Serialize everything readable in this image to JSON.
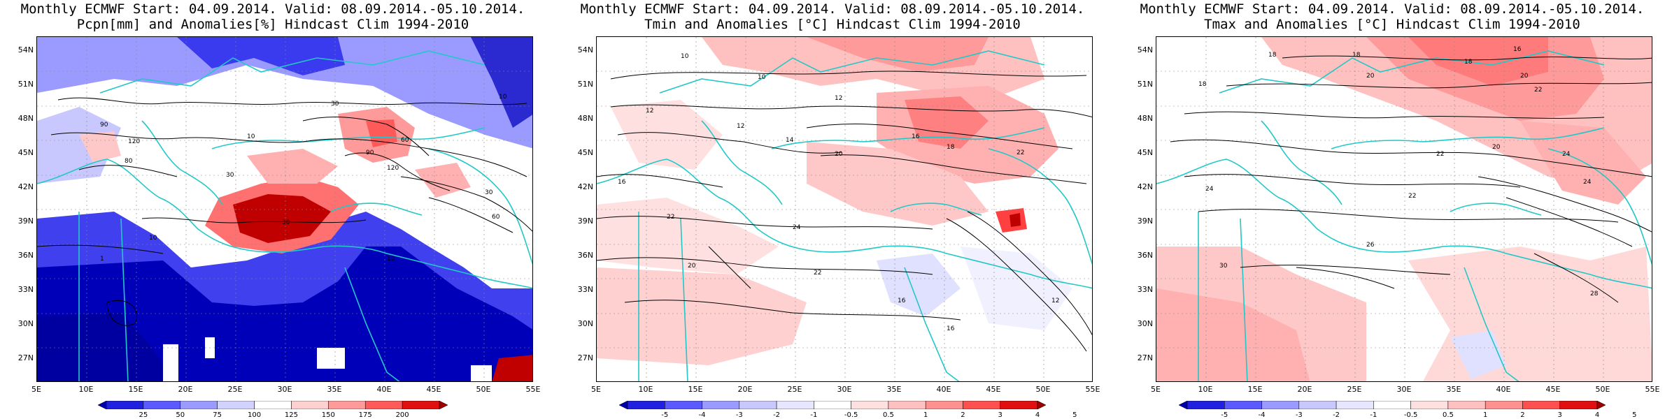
{
  "panels": [
    {
      "title1": "Monthly ECMWF Start: 04.09.2014. Valid: 08.09.2014.-05.10.2014.",
      "title2": "Pcpn[mm] and Anomalies[%] Hindcast Clim 1994-2010",
      "colorbar_labels": [
        "25",
        "50",
        "75",
        "100",
        "125",
        "150",
        "175",
        "200"
      ],
      "colorbar_colors": [
        "#0000b0",
        "#2020e0",
        "#5a5aff",
        "#9a9aff",
        "#d2d2ff",
        "#ffffff",
        "#ffd0d0",
        "#ff9a9a",
        "#ff5a5a",
        "#e01010",
        "#a00000"
      ],
      "contour_labels": [
        "30",
        "10",
        "60",
        "90",
        "120",
        "80",
        "60",
        "30",
        "10",
        "1",
        "30",
        "60",
        "90",
        "120"
      ]
    },
    {
      "title1": "Monthly ECMWF Start: 04.09.2014. Valid: 08.09.2014.-05.10.2014.",
      "title2": "Tmin and Anomalies [°C] Hindcast Clim 1994-2010",
      "colorbar_labels": [
        "-5",
        "-4",
        "-3",
        "-2",
        "-1",
        "-0.5",
        "0.5",
        "1",
        "2",
        "3",
        "4",
        "5"
      ],
      "colorbar_colors": [
        "#0000b0",
        "#2020e0",
        "#5a5aff",
        "#9a9aff",
        "#c8c8ff",
        "#e6e6ff",
        "#ffffff",
        "#ffe0e0",
        "#ffc0c0",
        "#ff9090",
        "#ff5050",
        "#e01010",
        "#a00000"
      ],
      "contour_labels": [
        "10",
        "12",
        "14",
        "16",
        "18",
        "20",
        "22",
        "24",
        "10",
        "12",
        "20",
        "16"
      ]
    },
    {
      "title1": "Monthly ECMWF Start: 04.09.2014. Valid: 08.09.2014.-05.10.2014.",
      "title2": "Tmax and Anomalies [°C] Hindcast Clim 1994-2010",
      "colorbar_labels": [
        "-5",
        "-4",
        "-3",
        "-2",
        "-1",
        "-0.5",
        "0.5",
        "1",
        "2",
        "3",
        "4",
        "5"
      ],
      "colorbar_colors": [
        "#0000b0",
        "#2020e0",
        "#5a5aff",
        "#9a9aff",
        "#c8c8ff",
        "#e6e6ff",
        "#ffffff",
        "#ffe0e0",
        "#ffc0c0",
        "#ff9090",
        "#ff5050",
        "#e01010",
        "#a00000"
      ],
      "contour_labels": [
        "16",
        "18",
        "20",
        "22",
        "24",
        "26",
        "28",
        "30",
        "18",
        "20",
        "22",
        "24"
      ]
    }
  ],
  "axes": {
    "lat_labels": [
      "54N",
      "51N",
      "48N",
      "45N",
      "42N",
      "39N",
      "36N",
      "33N",
      "30N",
      "27N"
    ],
    "lon_labels": [
      "5E",
      "10E",
      "15E",
      "20E",
      "25E",
      "30E",
      "35E",
      "40E",
      "45E",
      "50E",
      "55E"
    ]
  },
  "colors": {
    "coastline": "#22c8c8",
    "contour": "#000000",
    "gridline": "#888888"
  }
}
